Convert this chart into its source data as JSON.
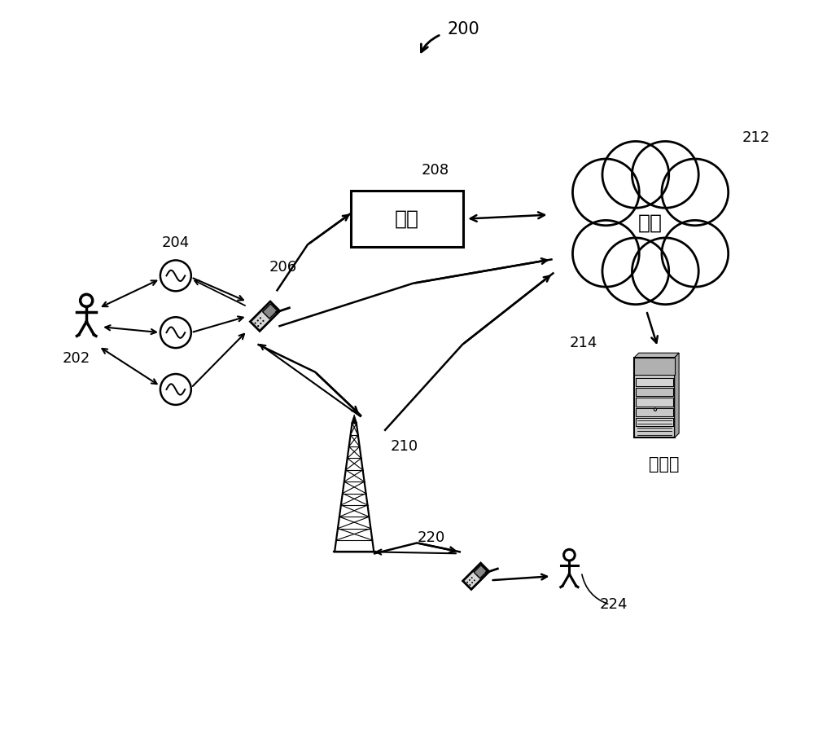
{
  "title_label": "200",
  "bg_color": "#ffffff",
  "line_color": "#000000",
  "label_202": "202",
  "label_204": "204",
  "label_206": "206",
  "label_208": "208",
  "label_210": "210",
  "label_212": "212",
  "label_214": "214",
  "label_220": "220",
  "label_224": "224",
  "gateway_text": "网关",
  "network_text": "网络",
  "server_text": "服务器",
  "figsize": [
    10.0,
    9.23
  ],
  "dpi": 100
}
